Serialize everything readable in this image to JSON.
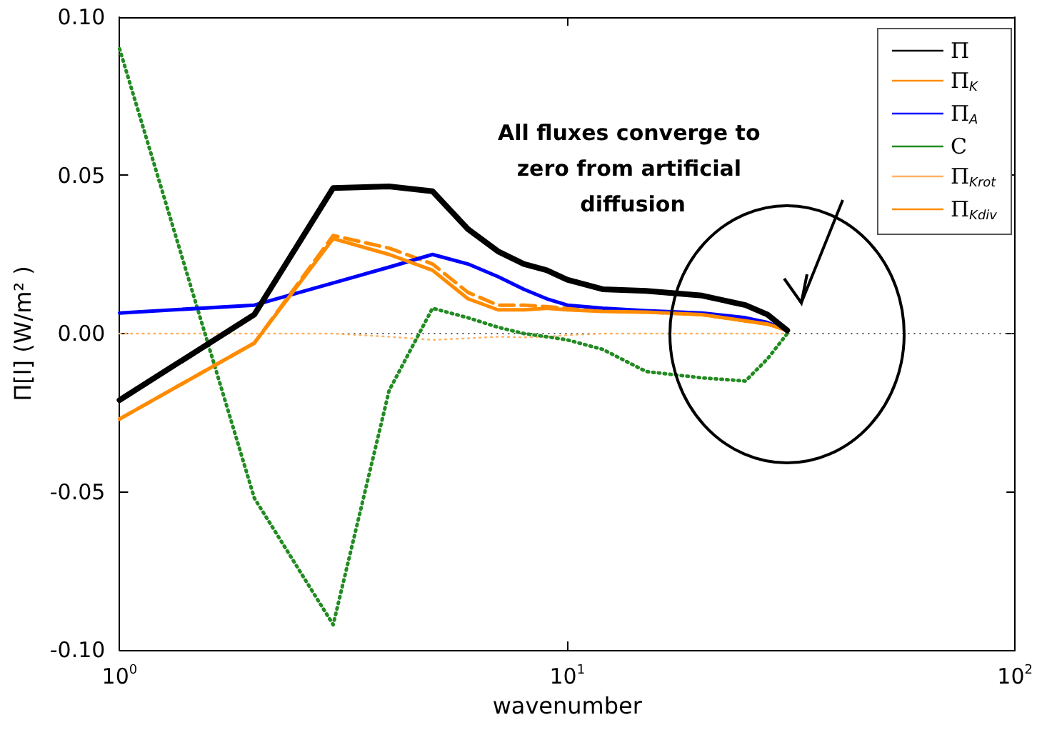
{
  "chart_data": {
    "type": "line",
    "xlabel": "wavenumber",
    "ylabel": "Π[l] (W/m² )",
    "log": "x",
    "grid": false,
    "legend": "top right",
    "marker": "none",
    "xlim": [
      1,
      100
    ],
    "xticks": [
      {
        "value": 1,
        "label": "10$^{0}$"
      },
      {
        "value": 10,
        "label": "10$^{1}$"
      },
      {
        "value": 100,
        "label": "10$^{2}$"
      }
    ],
    "ylim": [
      -0.1,
      0.1
    ],
    "yticks": [
      {
        "value": -0.1,
        "label": "-0.10"
      },
      {
        "value": -0.05,
        "label": "-0.05"
      },
      {
        "value": 0,
        "label": "0.00"
      },
      {
        "value": 0.05,
        "label": "0.05"
      },
      {
        "value": 0.1,
        "label": "0.10"
      }
    ],
    "x": [
      1,
      2,
      3,
      4,
      5,
      6,
      7,
      8,
      9,
      10,
      12,
      15,
      20,
      25,
      28,
      31
    ],
    "series": [
      {
        "name": "Π",
        "color": "#000000",
        "line_style": "solid",
        "values": [
          -0.021,
          0.006,
          0.046,
          0.0465,
          0.045,
          0.033,
          0.026,
          0.022,
          0.02,
          0.017,
          0.014,
          0.0135,
          0.012,
          0.009,
          0.006,
          0.001
        ]
      },
      {
        "name": "Π$_{K}$",
        "color": "#ff8c00",
        "line_style": "solid",
        "values": [
          -0.027,
          -0.003,
          0.03,
          0.025,
          0.02,
          0.011,
          0.0075,
          0.0075,
          0.008,
          0.0075,
          0.007,
          0.0068,
          0.006,
          0.004,
          0.003,
          0.001
        ]
      },
      {
        "name": "Π$_{A}$",
        "color": "#0000ff",
        "line_style": "solid",
        "values": [
          0.0065,
          0.009,
          0.016,
          0.021,
          0.025,
          0.022,
          0.018,
          0.014,
          0.011,
          0.009,
          0.008,
          0.0072,
          0.0065,
          0.005,
          0.0035,
          0.001
        ]
      },
      {
        "name": "C",
        "color": "#228b22",
        "line_style": "dotted",
        "values": [
          0.09,
          -0.052,
          -0.092,
          -0.018,
          0.008,
          0.005,
          0.002,
          0.0,
          -0.001,
          -0.002,
          -0.005,
          -0.012,
          -0.014,
          -0.015,
          -0.008,
          0.0
        ]
      },
      {
        "name": "Π$_{Krot}$",
        "color": "#ffb366",
        "line_style": "dotted",
        "values": [
          0.0,
          0.0,
          0.0,
          -0.001,
          -0.002,
          -0.0015,
          -0.001,
          -0.0012,
          -0.001,
          -0.0005,
          0.0,
          0.0,
          0.0,
          0.0,
          0.0,
          0.0
        ]
      },
      {
        "name": "Π$_{Kdiv}$",
        "color": "#ff8c00",
        "line_style": "dashed",
        "values": [
          -0.027,
          -0.003,
          0.031,
          0.027,
          0.022,
          0.013,
          0.009,
          0.009,
          0.0085,
          0.008,
          0.0072,
          0.0068,
          0.006,
          0.004,
          0.003,
          0.001
        ]
      }
    ],
    "ref_lines": [
      {
        "axis": "y",
        "value": 0,
        "color": "#555555",
        "line_style": "dotted"
      }
    ],
    "annotations": [
      "All fluxes converge to zero from artificial diffusion"
    ]
  }
}
